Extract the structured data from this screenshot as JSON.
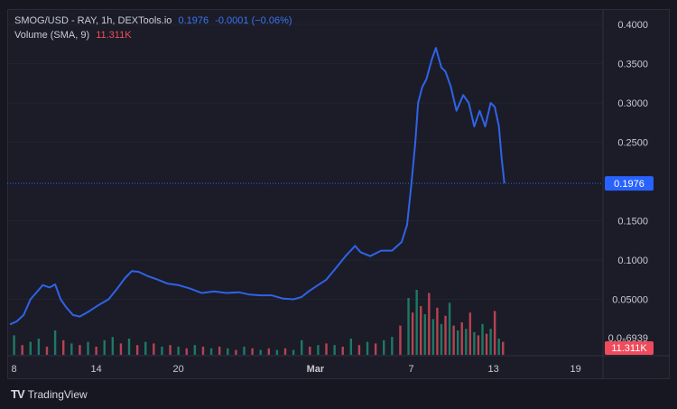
{
  "legend": {
    "symbol": "SMOG/USD - RAY, 1h, DEXTools.io",
    "last_price": "0.1976",
    "change": "-0.0001 (−0.06%)",
    "volume_label": "Volume (SMA, 9)",
    "volume_value": "11.311K"
  },
  "price_badge": "0.1976",
  "volume_badge": "11.311K",
  "volume_axis_label": "0.0₈6939",
  "branding": "TradingView",
  "colors": {
    "background": "#1b1c28",
    "price_line": "#2f63e8",
    "volume_up": "#1e8a6e",
    "volume_down": "#d24a57",
    "badge_price": "#2962ff",
    "badge_volume": "#f04b5c",
    "axis_text": "#c7c9d1"
  },
  "chart_data": {
    "type": "line",
    "title": "SMOG/USD - RAY, 1h, DEXTools.io",
    "xlabel": "",
    "ylabel": "",
    "x_ticks": [
      "8",
      "14",
      "20",
      "Mar",
      "7",
      "13",
      "19"
    ],
    "x_tick_days": [
      8,
      14,
      20,
      30,
      37,
      43,
      49
    ],
    "x_range_days": [
      7.5,
      51
    ],
    "y_ticks": [
      "0.4000",
      "0.3500",
      "0.3000",
      "0.2500",
      "0.1500",
      "0.1000",
      "0.05000"
    ],
    "ylim": [
      0.0,
      0.4
    ],
    "last_value": 0.1976,
    "series": [
      {
        "values_day": [
          7.7,
          8.2,
          8.7,
          9.2,
          9.6,
          10.1,
          10.6,
          11.0,
          11.4,
          11.8,
          12.3,
          12.8,
          13.5,
          14.2,
          14.9,
          15.5,
          16.1,
          16.6,
          17.1,
          17.7,
          18.5,
          19.2,
          20.0,
          20.8,
          21.7,
          22.6,
          23.5,
          24.4,
          25.2,
          26.0,
          26.8,
          27.6,
          28.4,
          29.0,
          29.5,
          30.1,
          30.8,
          31.6,
          32.2,
          32.9,
          33.3,
          34.0,
          34.8,
          35.6,
          36.3,
          36.7,
          37.0,
          37.3,
          37.5,
          37.8,
          38.1,
          38.5,
          38.8,
          39.2,
          39.5,
          39.9,
          40.3,
          40.8,
          41.2,
          41.6,
          42.0,
          42.4,
          42.8,
          43.1,
          43.4,
          43.6,
          43.8
        ],
        "values": [
          0.018,
          0.022,
          0.03,
          0.05,
          0.058,
          0.068,
          0.065,
          0.069,
          0.05,
          0.04,
          0.03,
          0.028,
          0.035,
          0.043,
          0.05,
          0.063,
          0.077,
          0.086,
          0.085,
          0.08,
          0.075,
          0.07,
          0.068,
          0.064,
          0.058,
          0.06,
          0.058,
          0.059,
          0.056,
          0.055,
          0.055,
          0.051,
          0.05,
          0.053,
          0.06,
          0.067,
          0.075,
          0.092,
          0.105,
          0.118,
          0.11,
          0.105,
          0.112,
          0.112,
          0.123,
          0.145,
          0.195,
          0.25,
          0.3,
          0.32,
          0.33,
          0.355,
          0.37,
          0.345,
          0.34,
          0.32,
          0.29,
          0.31,
          0.3,
          0.27,
          0.29,
          0.27,
          0.3,
          0.295,
          0.27,
          0.23,
          0.1976
        ]
      }
    ],
    "volume": {
      "days": [
        8.0,
        8.6,
        9.2,
        9.8,
        10.4,
        11.0,
        11.6,
        12.2,
        12.8,
        13.4,
        14.0,
        14.6,
        15.2,
        15.8,
        16.4,
        17.0,
        17.6,
        18.2,
        18.8,
        19.4,
        20.0,
        20.6,
        21.2,
        21.8,
        22.4,
        23.0,
        23.6,
        24.2,
        24.8,
        25.4,
        26.0,
        26.6,
        27.2,
        27.8,
        28.4,
        29.0,
        29.6,
        30.2,
        30.8,
        31.4,
        32.0,
        32.6,
        33.2,
        33.8,
        34.4,
        35.0,
        35.6,
        36.2,
        36.8,
        37.1,
        37.4,
        37.7,
        38.0,
        38.3,
        38.6,
        38.9,
        39.2,
        39.5,
        39.8,
        40.1,
        40.4,
        40.7,
        41.0,
        41.3,
        41.6,
        41.9,
        42.2,
        42.5,
        42.8,
        43.1,
        43.4,
        43.7
      ],
      "values": [
        1.2,
        0.6,
        0.8,
        1.0,
        0.5,
        1.5,
        0.9,
        0.7,
        0.6,
        0.8,
        0.5,
        0.9,
        1.1,
        0.7,
        1.0,
        0.6,
        0.8,
        0.7,
        0.5,
        0.6,
        0.5,
        0.4,
        0.6,
        0.5,
        0.4,
        0.5,
        0.4,
        0.3,
        0.5,
        0.4,
        0.3,
        0.4,
        0.3,
        0.4,
        0.3,
        0.9,
        0.5,
        0.6,
        0.7,
        0.6,
        0.5,
        1.0,
        0.6,
        0.8,
        0.7,
        0.9,
        1.1,
        1.8,
        3.5,
        2.6,
        4.0,
        3.0,
        2.5,
        3.8,
        2.2,
        2.9,
        1.9,
        2.4,
        3.2,
        1.8,
        1.5,
        2.0,
        1.6,
        2.6,
        1.4,
        1.2,
        1.9,
        1.3,
        1.6,
        2.7,
        1.0,
        0.8
      ],
      "up": [
        true,
        false,
        true,
        true,
        false,
        true,
        false,
        true,
        false,
        true,
        false,
        true,
        true,
        false,
        true,
        false,
        true,
        false,
        true,
        false,
        true,
        false,
        true,
        false,
        true,
        false,
        true,
        false,
        true,
        false,
        true,
        false,
        true,
        false,
        true,
        true,
        false,
        true,
        false,
        true,
        false,
        true,
        false,
        true,
        false,
        true,
        true,
        false,
        true,
        false,
        true,
        false,
        true,
        false,
        true,
        false,
        true,
        false,
        true,
        false,
        true,
        false,
        true,
        false,
        true,
        false,
        true,
        false,
        true,
        false,
        true,
        false
      ]
    }
  }
}
